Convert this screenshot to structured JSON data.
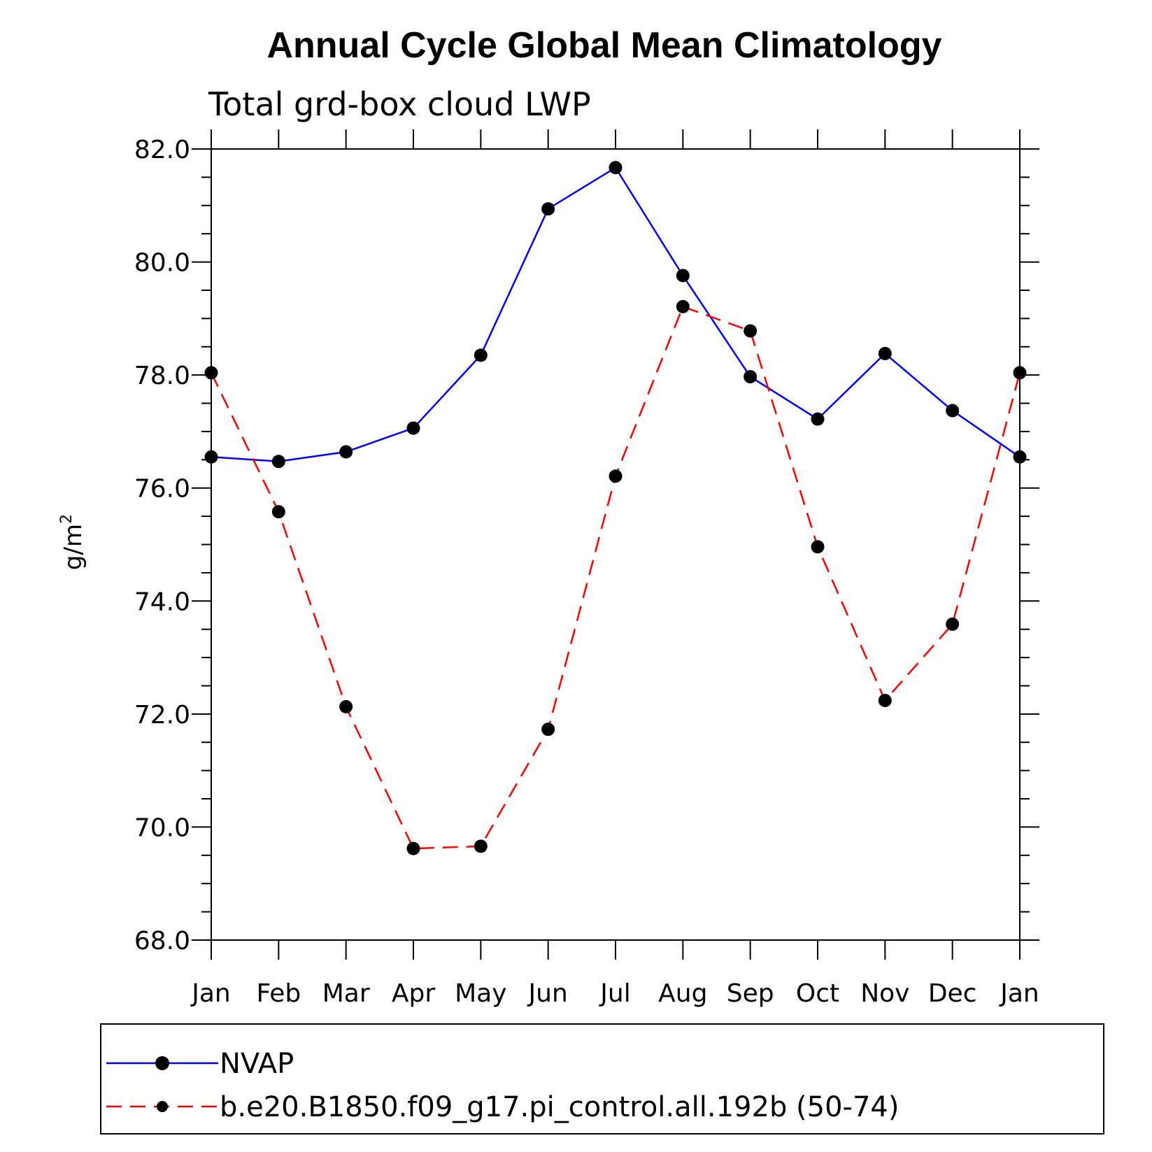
{
  "chart_data": {
    "type": "line",
    "title": "Annual Cycle Global Mean Climatology",
    "subtitle": "Total grd-box cloud LWP",
    "xlabel": "",
    "ylabel": "g/m",
    "ylabel_superscript": "2",
    "ylim": [
      68.0,
      82.0
    ],
    "y_major_ticks": [
      "68.0",
      "70.0",
      "72.0",
      "74.0",
      "76.0",
      "78.0",
      "80.0",
      "82.0"
    ],
    "categories": [
      "Jan",
      "Feb",
      "Mar",
      "Apr",
      "May",
      "Jun",
      "Jul",
      "Aug",
      "Sep",
      "Oct",
      "Nov",
      "Dec",
      "Jan"
    ],
    "series": [
      {
        "name": "NVAP",
        "color": "#0000ff",
        "dash": "solid",
        "values": [
          76.55,
          76.47,
          76.64,
          77.06,
          78.35,
          80.94,
          81.67,
          79.76,
          77.97,
          77.22,
          78.38,
          77.37,
          76.55
        ]
      },
      {
        "name": "b.e20.B1850.f09_g17.pi_control.all.192b (50-74)",
        "color": "#ff0000",
        "dash": "dashed",
        "values": [
          78.04,
          75.58,
          72.13,
          69.62,
          69.66,
          71.73,
          76.21,
          79.21,
          78.78,
          74.96,
          72.24,
          73.59,
          78.04
        ]
      }
    ],
    "legend_position": "bottom"
  }
}
